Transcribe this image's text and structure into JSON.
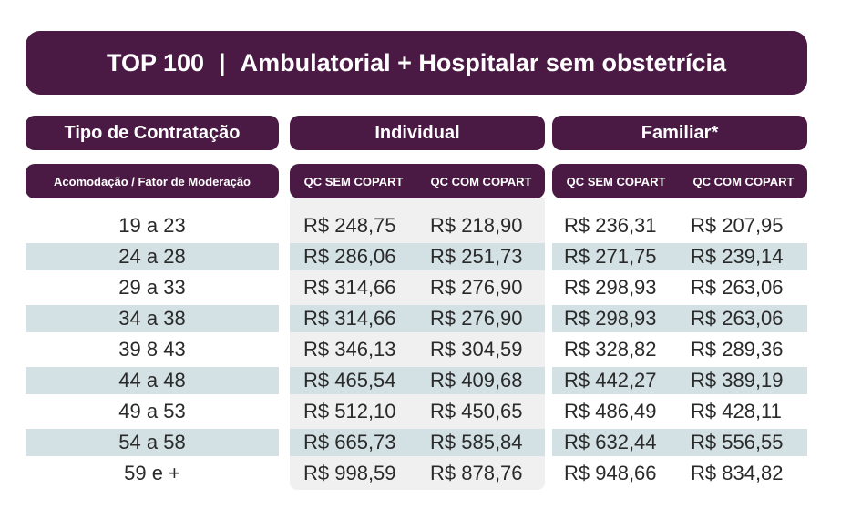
{
  "title": {
    "left": "TOP 100",
    "separator": "|",
    "right": "Ambulatorial + Hospitalar sem obstetrícia"
  },
  "headers": {
    "tipo": "Tipo de Contratação",
    "individual": "Individual",
    "familiar": "Familiar*",
    "acomodacao": "Acomodação / Fator de Moderação",
    "ind_sem": "QC SEM COPART",
    "ind_com": "QC COM COPART",
    "fam_sem": "QC SEM COPART",
    "fam_com": "QC COM COPART"
  },
  "colors": {
    "header_bg": "#4a1a44",
    "stripe": "#d3e0e4",
    "individual_bg": "#f0f0f0"
  },
  "rows": [
    {
      "age": "19 a 23",
      "ind_sem": "R$ 248,75",
      "ind_com": "R$ 218,90",
      "fam_sem": "R$ 236,31",
      "fam_com": "R$ 207,95"
    },
    {
      "age": "24 a 28",
      "ind_sem": "R$ 286,06",
      "ind_com": "R$ 251,73",
      "fam_sem": "R$ 271,75",
      "fam_com": "R$ 239,14"
    },
    {
      "age": "29 a 33",
      "ind_sem": "R$ 314,66",
      "ind_com": "R$ 276,90",
      "fam_sem": "R$ 298,93",
      "fam_com": "R$ 263,06"
    },
    {
      "age": "34 a 38",
      "ind_sem": "R$ 314,66",
      "ind_com": "R$ 276,90",
      "fam_sem": "R$ 298,93",
      "fam_com": "R$ 263,06"
    },
    {
      "age": "39 8 43",
      "ind_sem": "R$ 346,13",
      "ind_com": "R$ 304,59",
      "fam_sem": "R$ 328,82",
      "fam_com": "R$ 289,36"
    },
    {
      "age": "44 a 48",
      "ind_sem": "R$ 465,54",
      "ind_com": "R$ 409,68",
      "fam_sem": "R$ 442,27",
      "fam_com": "R$ 389,19"
    },
    {
      "age": "49 a 53",
      "ind_sem": "R$ 512,10",
      "ind_com": "R$ 450,65",
      "fam_sem": "R$ 486,49",
      "fam_com": "R$ 428,11"
    },
    {
      "age": "54 a 58",
      "ind_sem": "R$ 665,73",
      "ind_com": "R$ 585,84",
      "fam_sem": "R$ 632,44",
      "fam_com": "R$ 556,55"
    },
    {
      "age": "59 e +",
      "ind_sem": "R$ 998,59",
      "ind_com": "R$ 878,76",
      "fam_sem": "R$ 948,66",
      "fam_com": "R$ 834,82"
    }
  ]
}
